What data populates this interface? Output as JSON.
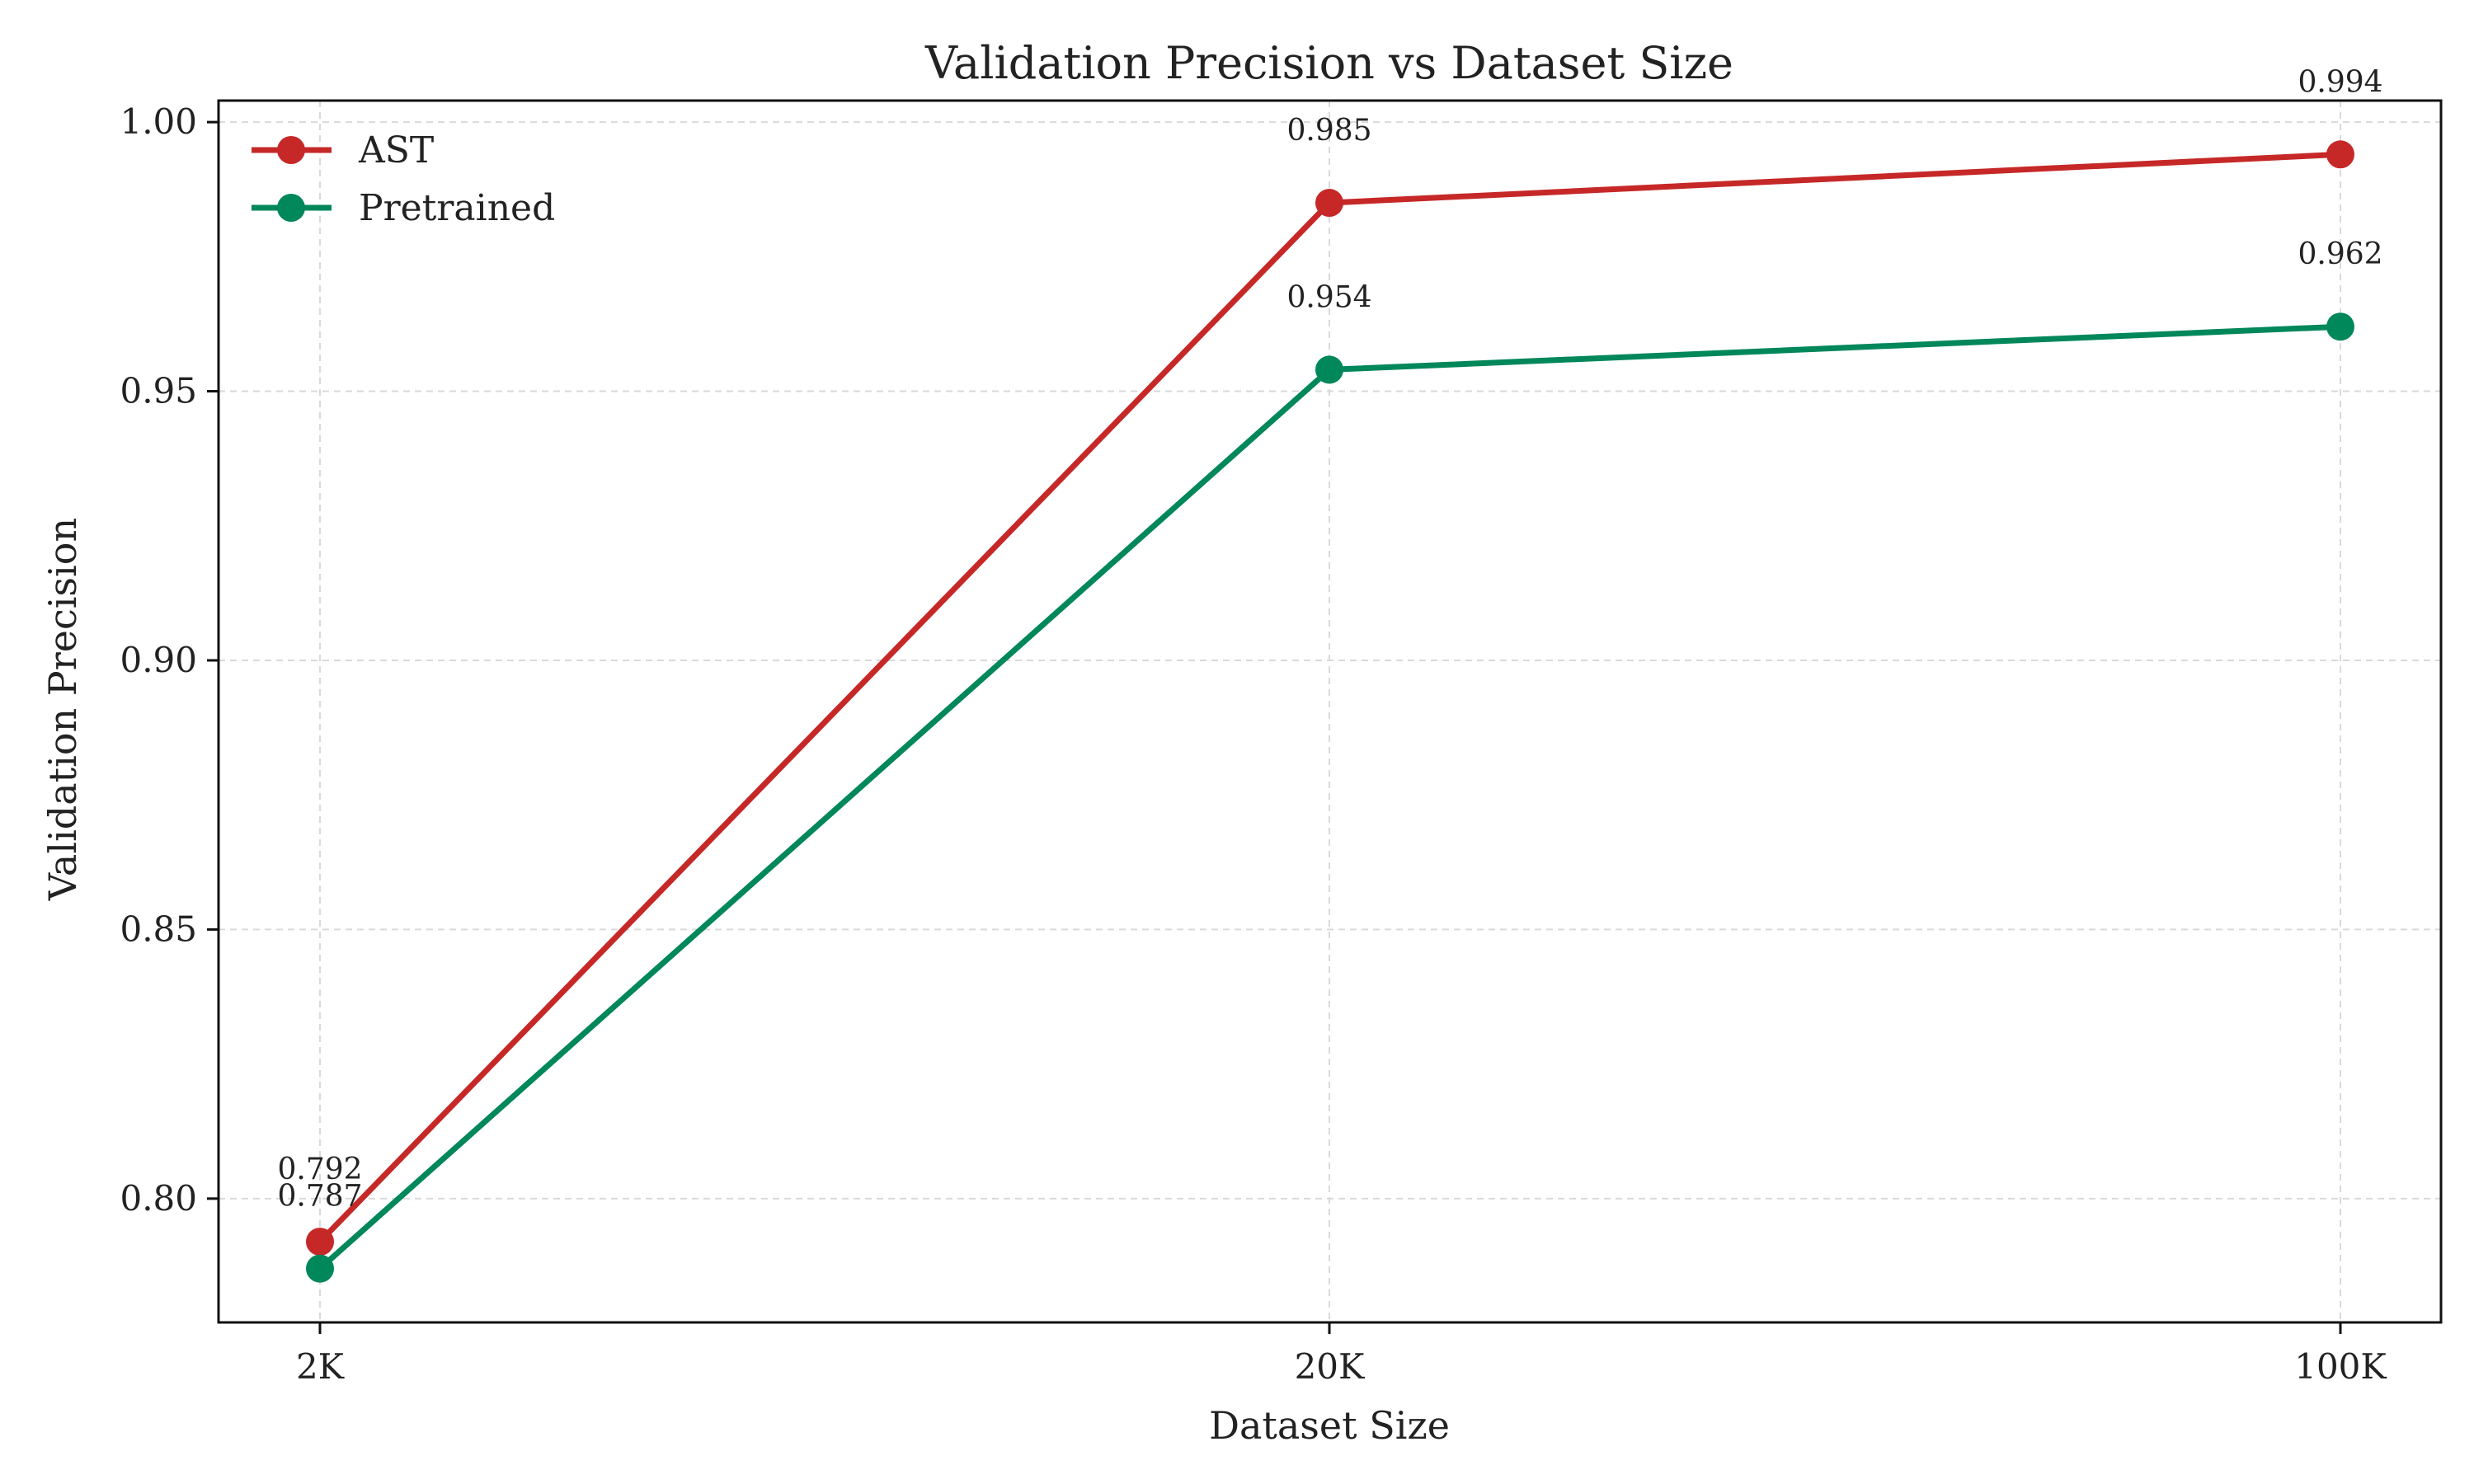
{
  "chart_data": {
    "type": "line",
    "title": "Validation Precision vs Dataset Size",
    "xlabel": "Dataset Size",
    "ylabel": "Validation Precision",
    "categories": [
      "2K",
      "20K",
      "100K"
    ],
    "ylim": [
      0.777,
      1.004
    ],
    "yticks": [
      "0.80",
      "0.85",
      "0.90",
      "0.95",
      "1.00"
    ],
    "grid": true,
    "legend_position": "top-left",
    "series": [
      {
        "name": "AST",
        "color": "#c62828",
        "values": [
          0.792,
          0.985,
          0.994
        ],
        "labels": [
          "0.792",
          "0.985",
          "0.994"
        ]
      },
      {
        "name": "Pretrained",
        "color": "#00875a",
        "values": [
          0.787,
          0.954,
          0.962
        ],
        "labels": [
          "0.787",
          "0.954",
          "0.962"
        ]
      }
    ]
  }
}
